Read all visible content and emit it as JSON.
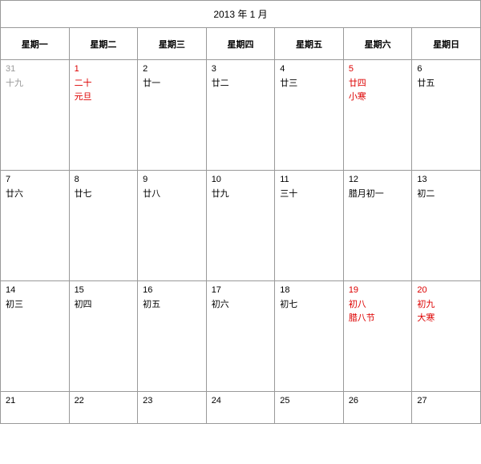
{
  "title": "2013 年 1 月",
  "weekdays": [
    "星期一",
    "星期二",
    "星期三",
    "星期四",
    "星期五",
    "星期六",
    "星期日"
  ],
  "colors": {
    "border": "#999999",
    "text": "#000000",
    "muted": "#999999",
    "highlight": "#dd0000",
    "background": "#ffffff"
  },
  "rows": [
    [
      {
        "num": "31",
        "lunar": "十九",
        "numClass": "muted",
        "lunarClass": "muted"
      },
      {
        "num": "1",
        "lunar": "二十",
        "extra": "元旦",
        "numClass": "red",
        "lunarClass": "red",
        "extraClass": "red"
      },
      {
        "num": "2",
        "lunar": "廿一"
      },
      {
        "num": "3",
        "lunar": "廿二"
      },
      {
        "num": "4",
        "lunar": "廿三"
      },
      {
        "num": "5",
        "lunar": "廿四",
        "extra": "小寒",
        "numClass": "red",
        "lunarClass": "red",
        "extraClass": "red"
      },
      {
        "num": "6",
        "lunar": "廿五"
      }
    ],
    [
      {
        "num": "7",
        "lunar": "廿六"
      },
      {
        "num": "8",
        "lunar": "廿七"
      },
      {
        "num": "9",
        "lunar": "廿八"
      },
      {
        "num": "10",
        "lunar": "廿九"
      },
      {
        "num": "11",
        "lunar": "三十"
      },
      {
        "num": "12",
        "lunar": "腊月初一"
      },
      {
        "num": "13",
        "lunar": "初二"
      }
    ],
    [
      {
        "num": "14",
        "lunar": "初三"
      },
      {
        "num": "15",
        "lunar": "初四"
      },
      {
        "num": "16",
        "lunar": "初五"
      },
      {
        "num": "17",
        "lunar": "初六"
      },
      {
        "num": "18",
        "lunar": "初七"
      },
      {
        "num": "19",
        "lunar": "初八",
        "extra": "腊八节",
        "numClass": "red",
        "lunarClass": "red",
        "extraClass": "red"
      },
      {
        "num": "20",
        "lunar": "初九",
        "extra": "大寒",
        "numClass": "red",
        "lunarClass": "red",
        "extraClass": "red"
      }
    ],
    [
      {
        "num": "21"
      },
      {
        "num": "22"
      },
      {
        "num": "23"
      },
      {
        "num": "24"
      },
      {
        "num": "25"
      },
      {
        "num": "26"
      },
      {
        "num": "27"
      }
    ]
  ]
}
